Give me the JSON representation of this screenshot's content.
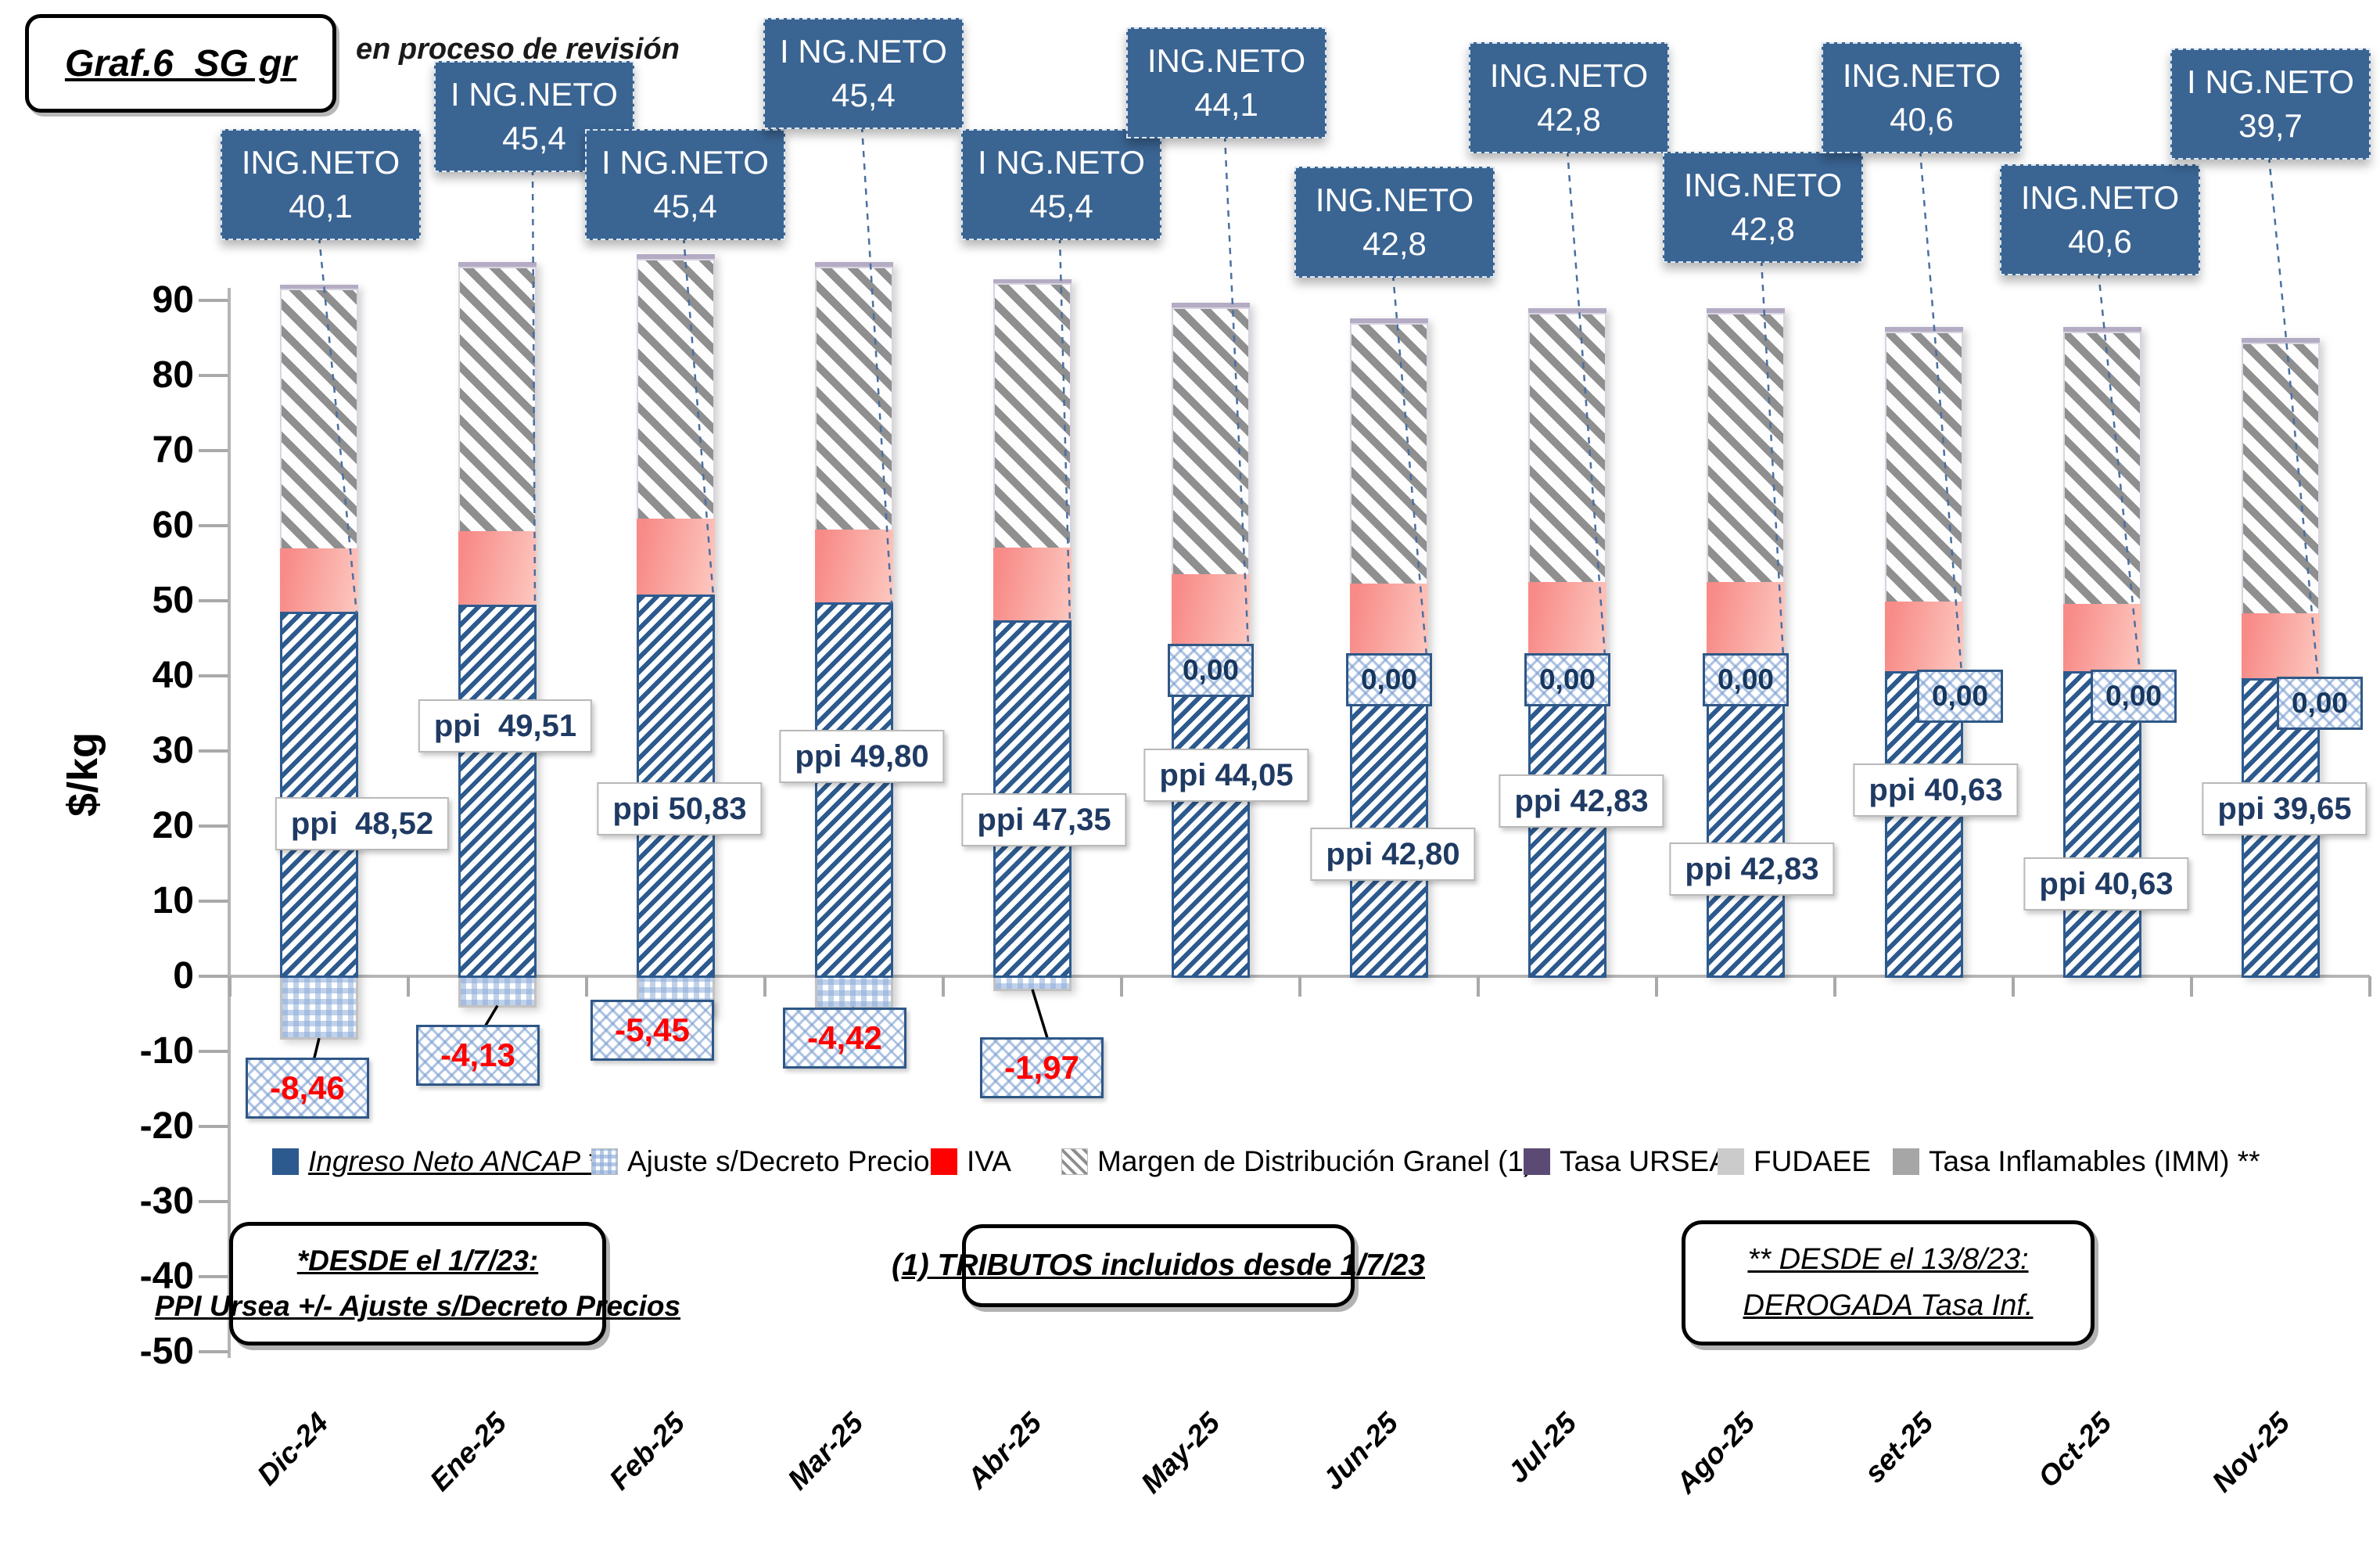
{
  "header": {
    "title": "Graf.6_SG gr",
    "status_note": "en proceso de revisión"
  },
  "y_axis": {
    "label": "$/kg",
    "ticks": [
      90,
      80,
      70,
      60,
      50,
      40,
      30,
      20,
      10,
      0,
      -10,
      -20,
      -30,
      -40,
      -50
    ]
  },
  "x_axis": {
    "categories": [
      "Dic-24",
      "Ene-25",
      "Feb-25",
      "Mar-25",
      "Abr-25",
      "May-25",
      "Jun-25",
      "Jul-25",
      "Ago-25",
      "set-25",
      "Oct-25",
      "Nov-25"
    ]
  },
  "callouts": [
    {
      "prefix": "ING.NETO",
      "value": "40,1"
    },
    {
      "prefix": "I NG.NETO",
      "value": "45,4"
    },
    {
      "prefix": "I NG.NETO",
      "value": "45,4"
    },
    {
      "prefix": "I NG.NETO",
      "value": "45,4"
    },
    {
      "prefix": "I NG.NETO",
      "value": "45,4"
    },
    {
      "prefix": "ING.NETO",
      "value": "44,1"
    },
    {
      "prefix": "ING.NETO",
      "value": "42,8"
    },
    {
      "prefix": "ING.NETO",
      "value": "42,8"
    },
    {
      "prefix": "ING.NETO",
      "value": "42,8"
    },
    {
      "prefix": "ING.NETO",
      "value": "40,6"
    },
    {
      "prefix": "ING.NETO",
      "value": "40,6"
    },
    {
      "prefix": "I NG.NETO",
      "value": "39,7"
    }
  ],
  "bar_labels": {
    "ppi": [
      "ppi  48,52",
      "ppi  49,51",
      "ppi 50,83",
      "ppi 49,80",
      "ppi 47,35",
      "ppi 44,05",
      "ppi 42,80",
      "ppi 42,83",
      "ppi 42,83",
      "ppi 40,63",
      "ppi 40,63",
      "ppi 39,65"
    ],
    "ajuste": [
      "-8,46",
      "-4,13",
      "-5,45",
      "-4,42",
      "-1,97",
      "0,00",
      "0,00",
      "0,00",
      "0,00",
      "0,00",
      "0,00",
      "0,00"
    ]
  },
  "legend": {
    "items": [
      {
        "label": "Ingreso Neto ANCAP *",
        "swatch": "ingreso"
      },
      {
        "label": "Ajuste s/Decreto Precios",
        "swatch": "ajuste"
      },
      {
        "label": "IVA",
        "swatch": "iva"
      },
      {
        "label": "Margen de Distribución Granel (1)",
        "swatch": "margen"
      },
      {
        "label": "Tasa URSEA",
        "swatch": "ursea"
      },
      {
        "label": "FUDAEE",
        "swatch": "fudaee"
      },
      {
        "label": "Tasa Inflamables (IMM) **",
        "swatch": "inflamables"
      }
    ]
  },
  "notes": [
    {
      "lines": [
        "*DESDE el 1/7/23:",
        "PPI Ursea +/- Ajuste s/Decreto Precios"
      ]
    },
    {
      "lines": [
        "(1) TRIBUTOS incluidos desde 1/7/23"
      ]
    },
    {
      "lines": [
        "** DESDE el 13/8/23:",
        "DEROGADA Tasa Inf."
      ]
    }
  ],
  "chart_data": {
    "type": "bar",
    "stacked": true,
    "title": "Graf.6_SG gr",
    "ylabel": "$/kg",
    "ylim": [
      -50,
      100
    ],
    "grid": false,
    "legend_position": "bottom",
    "categories": [
      "Dic-24",
      "Ene-25",
      "Feb-25",
      "Mar-25",
      "Abr-25",
      "May-25",
      "Jun-25",
      "Jul-25",
      "Ago-25",
      "set-25",
      "Oct-25",
      "Nov-25"
    ],
    "series": [
      {
        "name": "Ingreso Neto ANCAP * (ppi)",
        "values": [
          48.52,
          49.51,
          50.83,
          49.8,
          47.35,
          44.05,
          42.8,
          42.83,
          42.83,
          40.63,
          40.63,
          39.65
        ]
      },
      {
        "name": "Ajuste s/Decreto Precios",
        "values": [
          -8.46,
          -4.13,
          -5.45,
          -4.42,
          -1.97,
          0,
          0,
          0,
          0,
          0,
          0,
          0
        ]
      },
      {
        "name": "IVA",
        "values": [
          8.5,
          9.8,
          10.1,
          9.7,
          9.7,
          9.5,
          9.5,
          9.7,
          9.7,
          9.3,
          9.0,
          8.7
        ]
      },
      {
        "name": "Margen de Distribución Granel (1)",
        "values": [
          34.5,
          35.2,
          34.6,
          35.0,
          35.2,
          35.5,
          34.7,
          35.8,
          35.8,
          35.9,
          36.2,
          36.0
        ]
      },
      {
        "name": "FUDAEE",
        "values": [
          0.6,
          0.6,
          0.6,
          0.6,
          0.6,
          0.6,
          0.6,
          0.6,
          0.6,
          0.6,
          0.6,
          0.6
        ]
      },
      {
        "name": "Tasa URSEA",
        "values": [
          0,
          0,
          0,
          0,
          0,
          0,
          0,
          0,
          0,
          0,
          0,
          0
        ]
      },
      {
        "name": "Tasa Inflamables (IMM) **",
        "values": [
          0,
          0,
          0,
          0,
          0,
          0,
          0,
          0,
          0,
          0,
          0,
          0
        ]
      }
    ],
    "ing_neto_totals": [
      40.1,
      45.4,
      45.4,
      45.4,
      45.4,
      44.1,
      42.8,
      42.8,
      42.8,
      40.6,
      40.6,
      39.7
    ]
  },
  "colors": {
    "ingreso_blue": "#2d5a8e",
    "callout_blue": "#3a6492",
    "iva_red": "#ff0000",
    "iva_pink_start": "#f88b88",
    "iva_pink_end": "#fcc5bd",
    "margen_gray": "#8f8f8f",
    "ajuste_light_blue": "#8dacd8",
    "ursea_purple": "#5b4a73",
    "fudaee_gray": "#cbcbcb",
    "inflamables_gray": "#a6a6a6",
    "negative_text": "#ff0000",
    "ppi_text": "#1f3a63"
  }
}
